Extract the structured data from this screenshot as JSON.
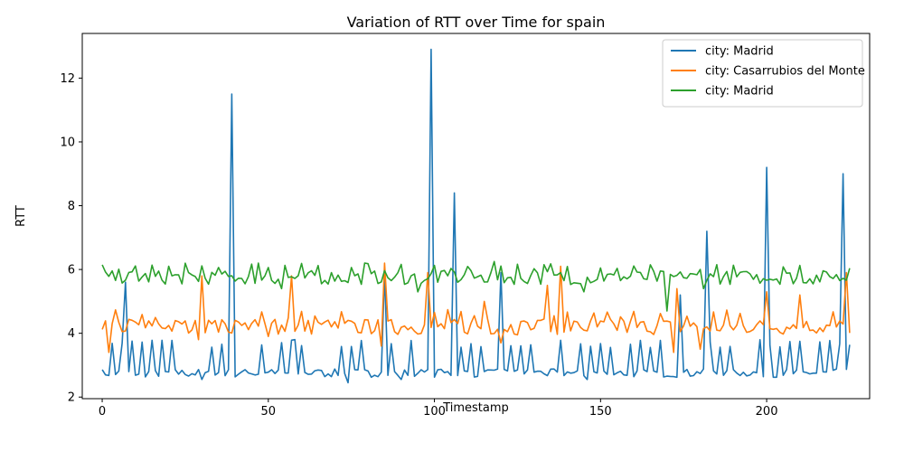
{
  "chart_data": {
    "type": "line",
    "title": "Variation of RTT over Time for spain",
    "xlabel": "Timestamp",
    "ylabel": "RTT",
    "xlim": [
      -6,
      231
    ],
    "ylim": [
      1.95,
      13.4
    ],
    "xticks": [
      0,
      50,
      100,
      150,
      200
    ],
    "yticks": [
      2,
      4,
      6,
      8,
      10,
      12
    ],
    "legend_position": "upper-right",
    "grid": false,
    "series": [
      {
        "name": "city: Madrid",
        "color": "#1f77b4",
        "base": 2.75,
        "jitter": 0.13,
        "spike_every": 3,
        "spike_range": [
          3.55,
          3.8
        ],
        "peaks": [
          [
            7,
            5.6
          ],
          [
            39,
            11.5
          ],
          [
            58,
            3.8
          ],
          [
            85,
            5.9
          ],
          [
            99,
            12.9
          ],
          [
            106,
            8.4
          ],
          [
            120,
            5.9
          ],
          [
            174,
            5.2
          ],
          [
            182,
            7.2
          ],
          [
            200,
            9.2
          ],
          [
            223,
            9.0
          ]
        ],
        "lows": [
          [
            30,
            2.55
          ],
          [
            74,
            2.45
          ],
          [
            90,
            2.55
          ],
          [
            146,
            2.55
          ]
        ],
        "x_start": 0,
        "x_end": 225
      },
      {
        "name": "city: Casarrubios del Monte",
        "color": "#ff7f0e",
        "base": 4.2,
        "jitter": 0.25,
        "spike_every": 4,
        "spike_range": [
          4.4,
          4.75
        ],
        "peaks": [
          [
            30,
            5.8
          ],
          [
            57,
            5.8
          ],
          [
            85,
            6.2
          ],
          [
            98,
            5.9
          ],
          [
            115,
            5.0
          ],
          [
            134,
            5.5
          ],
          [
            138,
            6.1
          ],
          [
            173,
            5.4
          ],
          [
            200,
            5.3
          ],
          [
            210,
            5.2
          ],
          [
            224,
            5.9
          ]
        ],
        "lows": [
          [
            2,
            3.4
          ],
          [
            29,
            3.8
          ],
          [
            50,
            3.9
          ],
          [
            84,
            3.6
          ],
          [
            98,
            3.6
          ],
          [
            120,
            3.7
          ],
          [
            172,
            3.4
          ],
          [
            180,
            3.5
          ]
        ],
        "x_start": 0,
        "x_end": 225
      },
      {
        "name": "city: Madrid",
        "color": "#2ca02c",
        "base": 5.75,
        "jitter": 0.22,
        "spike_every": 5,
        "spike_range": [
          6.0,
          6.2
        ],
        "peaks": [
          [
            47,
            6.2
          ],
          [
            79,
            6.2
          ],
          [
            118,
            6.25
          ],
          [
            133,
            6.15
          ],
          [
            185,
            6.15
          ]
        ],
        "lows": [
          [
            54,
            5.4
          ],
          [
            95,
            5.3
          ],
          [
            145,
            5.3
          ],
          [
            170,
            4.7
          ],
          [
            181,
            5.4
          ]
        ],
        "x_start": 0,
        "x_end": 225
      }
    ]
  }
}
